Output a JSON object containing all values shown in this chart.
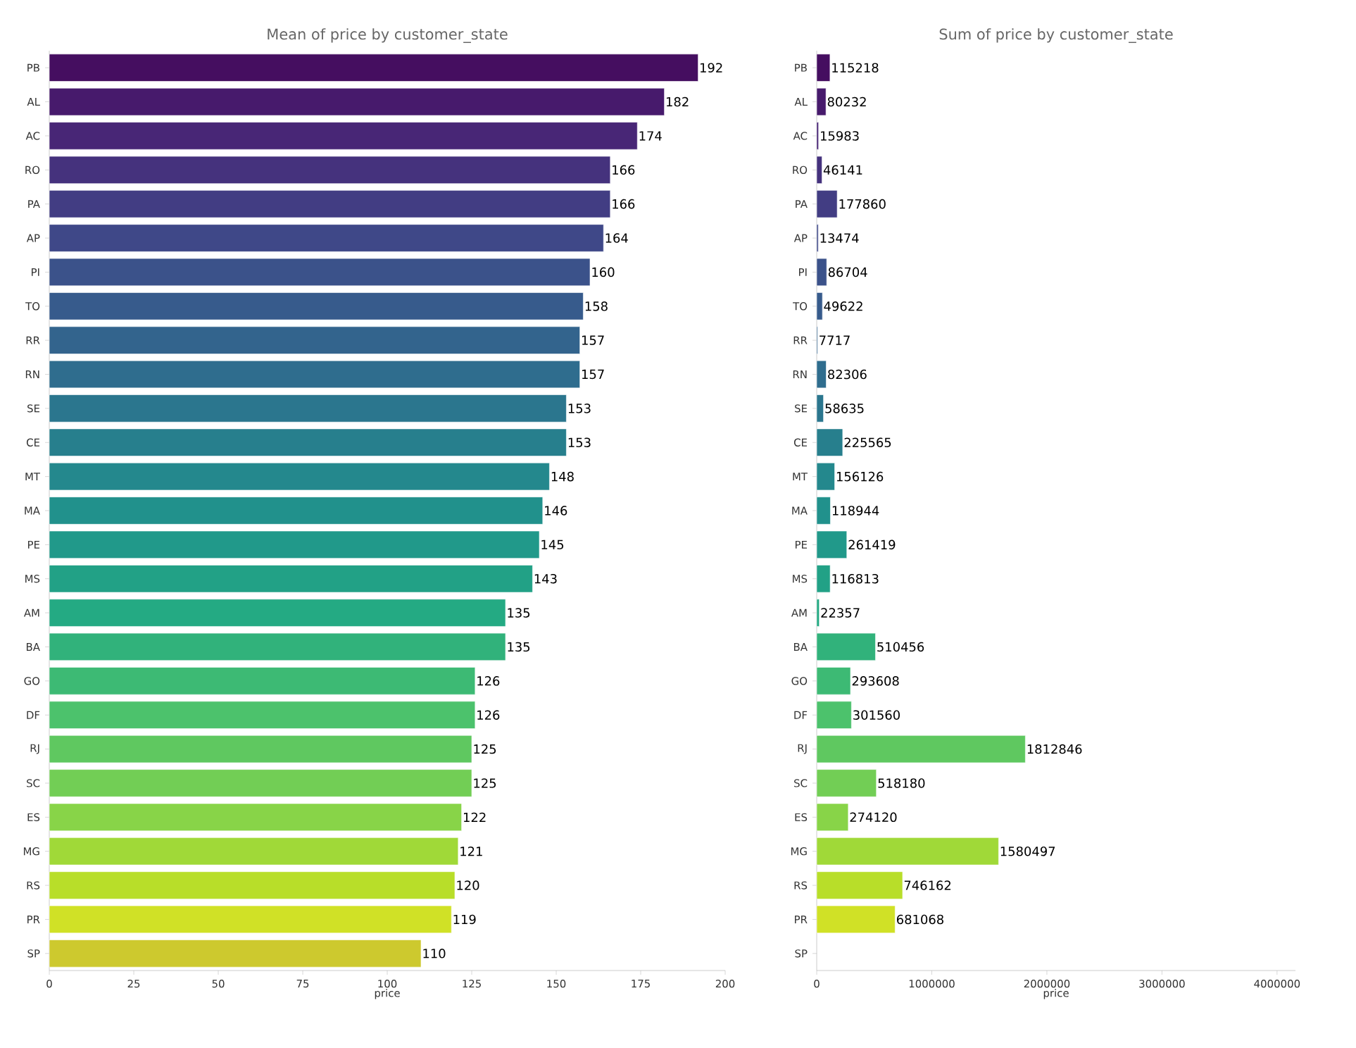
{
  "chart_data": [
    {
      "type": "bar",
      "orientation": "horizontal",
      "title": "Mean of price by customer_state",
      "xlabel": "price",
      "categories": [
        "PB",
        "AL",
        "AC",
        "RO",
        "PA",
        "AP",
        "PI",
        "TO",
        "RR",
        "RN",
        "SE",
        "CE",
        "MT",
        "MA",
        "PE",
        "MS",
        "AM",
        "BA",
        "GO",
        "DF",
        "RJ",
        "SC",
        "ES",
        "MG",
        "RS",
        "PR",
        "SP"
      ],
      "values": [
        192,
        182,
        174,
        166,
        166,
        164,
        160,
        158,
        157,
        157,
        153,
        153,
        148,
        146,
        145,
        143,
        135,
        135,
        126,
        126,
        125,
        125,
        122,
        121,
        120,
        119,
        110
      ],
      "colors": [
        "#450e60",
        "#471a6c",
        "#482676",
        "#45327d",
        "#423d83",
        "#3f4888",
        "#3b528a",
        "#375b8c",
        "#33648d",
        "#2f6d8e",
        "#2b768e",
        "#277f8d",
        "#24888d",
        "#21918c",
        "#21998a",
        "#22a186",
        "#24aa83",
        "#31b27b",
        "#3dba74",
        "#4cc26c",
        "#5fc860",
        "#72ce55",
        "#88d448",
        "#a0d938",
        "#b8de29",
        "#d0e126",
        "#cdc92e"
      ],
      "xlim": [
        0,
        200
      ],
      "xticks": [
        0,
        25,
        50,
        75,
        100,
        125,
        150,
        175,
        200
      ],
      "data_labels": true
    },
    {
      "type": "bar",
      "orientation": "horizontal",
      "title": "Sum of price by customer_state",
      "xlabel": "price",
      "categories": [
        "PB",
        "AL",
        "AC",
        "RO",
        "PA",
        "AP",
        "PI",
        "TO",
        "RR",
        "RN",
        "SE",
        "CE",
        "MT",
        "MA",
        "PE",
        "MS",
        "AM",
        "BA",
        "GO",
        "DF",
        "RJ",
        "SC",
        "ES",
        "MG",
        "RS",
        "PR",
        "SP"
      ],
      "values": [
        115218,
        80232,
        15983,
        46141,
        177860,
        13474,
        86704,
        49622,
        7717,
        82306,
        58635,
        225565,
        156126,
        118944,
        261419,
        116813,
        22357,
        510456,
        293608,
        301560,
        1812846,
        518180,
        274120,
        1580497,
        746162,
        681068,
        null
      ],
      "colors": [
        "#450e60",
        "#471a6c",
        "#482676",
        "#45327d",
        "#423d83",
        "#3f4888",
        "#3b528a",
        "#375b8c",
        "#33648d",
        "#2f6d8e",
        "#2b768e",
        "#277f8d",
        "#24888d",
        "#21918c",
        "#21998a",
        "#22a186",
        "#24aa83",
        "#31b27b",
        "#3dba74",
        "#4cc26c",
        "#5fc860",
        "#72ce55",
        "#88d448",
        "#a0d938",
        "#b8de29",
        "#d0e126",
        "#cdc92e"
      ],
      "xlim": [
        0,
        4160000
      ],
      "xticks": [
        0,
        1000000,
        2000000,
        3000000,
        4000000
      ],
      "data_labels": true
    }
  ]
}
